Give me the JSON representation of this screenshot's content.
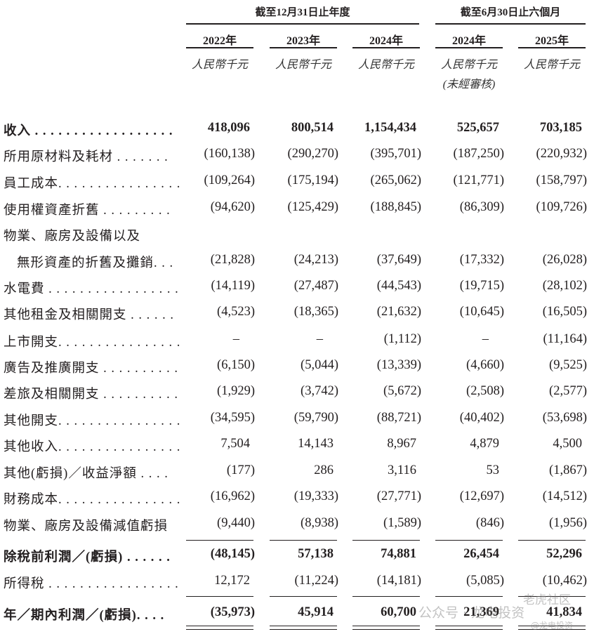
{
  "header": {
    "group_annual": "截至12月31日止年度",
    "group_interim": "截至6月30日止六個月",
    "columns": [
      {
        "year": "2022年",
        "unit": "人民幣千元",
        "note": ""
      },
      {
        "year": "2023年",
        "unit": "人民幣千元",
        "note": ""
      },
      {
        "year": "2024年",
        "unit": "人民幣千元",
        "note": ""
      },
      {
        "year": "2024年",
        "unit": "人民幣千元",
        "note": "(未經審核)"
      },
      {
        "year": "2025年",
        "unit": "人民幣千元",
        "note": ""
      }
    ]
  },
  "rows": [
    {
      "label": "收入 . . . . . . . . . . . . . . . . . .",
      "bold": true,
      "values": [
        "418,096",
        "800,514",
        "1,154,434",
        "525,657",
        "703,185"
      ]
    },
    {
      "label": "所用原材料及耗材 . . . . . . .",
      "values": [
        "(160,138)",
        "(290,270)",
        "(395,701)",
        "(187,250)",
        "(220,932)"
      ]
    },
    {
      "label": "員工成本. . . . . . . . . . . . . . . .",
      "values": [
        "(109,264)",
        "(175,194)",
        "(265,062)",
        "(121,771)",
        "(158,797)"
      ]
    },
    {
      "label": "使用權資產折舊 . . . . . . . . .",
      "values": [
        "(94,620)",
        "(125,429)",
        "(188,845)",
        "(86,309)",
        "(109,726)"
      ]
    },
    {
      "label": "物業、廠房及設備以及",
      "values": [
        "",
        "",
        "",
        "",
        ""
      ]
    },
    {
      "label": "無形資產的折舊及攤銷. . .",
      "indent": true,
      "values": [
        "(21,828)",
        "(24,213)",
        "(37,649)",
        "(17,332)",
        "(26,028)"
      ]
    },
    {
      "label": "水電費 . . . . . . . . . . . . . . . . .",
      "values": [
        "(14,119)",
        "(27,487)",
        "(44,543)",
        "(19,715)",
        "(28,102)"
      ]
    },
    {
      "label": "其他租金及相關開支 . . . . . .",
      "values": [
        "(4,523)",
        "(18,365)",
        "(21,632)",
        "(10,645)",
        "(16,505)"
      ]
    },
    {
      "label": "上市開支. . . . . . . . . . . . . . . .",
      "values": [
        "–",
        "–",
        "(1,112)",
        "–",
        "(11,164)"
      ]
    },
    {
      "label": "廣告及推廣開支 . . . . . . . . . .",
      "values": [
        "(6,150)",
        "(5,044)",
        "(13,339)",
        "(4,660)",
        "(9,525)"
      ]
    },
    {
      "label": "差旅及相關開支 . . . . . . . . . .",
      "values": [
        "(1,929)",
        "(3,742)",
        "(5,672)",
        "(2,508)",
        "(2,577)"
      ]
    },
    {
      "label": "其他開支. . . . . . . . . . . . . . . .",
      "values": [
        "(34,595)",
        "(59,790)",
        "(88,721)",
        "(40,402)",
        "(53,698)"
      ]
    },
    {
      "label": "其他收入. . . . . . . . . . . . . . . .",
      "values": [
        "7,504",
        "14,143",
        "8,967",
        "4,879",
        "4,500"
      ]
    },
    {
      "label": "其他(虧損)／收益淨額 . . . .",
      "values": [
        "(177)",
        "286",
        "3,116",
        "53",
        "(1,867)"
      ]
    },
    {
      "label": "財務成本. . . . . . . . . . . . . . . .",
      "values": [
        "(16,962)",
        "(19,333)",
        "(27,771)",
        "(12,697)",
        "(14,512)"
      ]
    },
    {
      "label": "物業、廠房及設備減值虧損",
      "values": [
        "(9,440)",
        "(8,938)",
        "(1,589)",
        "(846)",
        "(1,956)"
      ]
    },
    {
      "label": "除稅前利潤／(虧損) . . . . . .",
      "bold": true,
      "values": [
        "(48,145)",
        "57,138",
        "74,881",
        "26,454",
        "52,296"
      ]
    },
    {
      "label": "所得稅 . . . . . . . . . . . . . . . . .",
      "values": [
        "12,172",
        "(11,224)",
        "(14,181)",
        "(5,085)",
        "(10,462)"
      ]
    },
    {
      "label": "年／期內利潤／(虧損). . . .",
      "bold": true,
      "values": [
        "(35,973)",
        "45,914",
        "60,700",
        "21,369",
        "41,834"
      ]
    }
  ],
  "watermark": {
    "text1": "公众号 · 龙电投资",
    "text2": "老虎社区",
    "text3": "@龙电投资"
  }
}
